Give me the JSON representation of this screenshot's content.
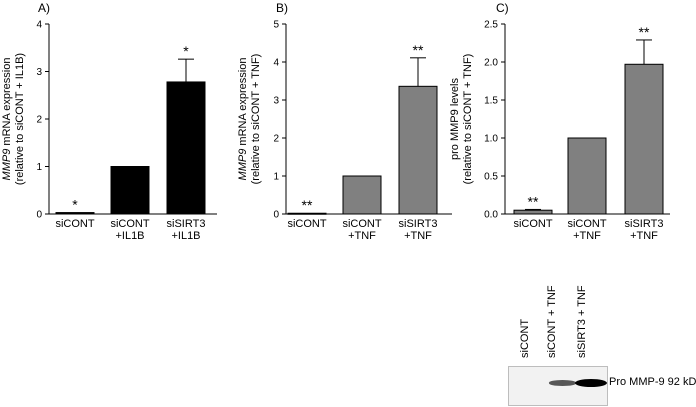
{
  "chart_data": [
    {
      "panel_label": "A)",
      "type": "bar",
      "categories": [
        "siCONT",
        "siCONT +IL1B",
        "siSIRT3 +IL1B"
      ],
      "category_lines": [
        [
          "siCONT"
        ],
        [
          "siCONT",
          "+IL1B"
        ],
        [
          "siSIRT3",
          "+IL1B"
        ]
      ],
      "values": [
        0.03,
        1.0,
        2.78
      ],
      "errors": [
        0.0,
        0.0,
        0.48
      ],
      "significance": [
        "*",
        "",
        "*"
      ],
      "ylabel_lines": [
        "MMP9 mRNA expression",
        "(relative to siCONT + IL1B)"
      ],
      "ylabel_italic_prefix": "MMP9",
      "ylim": [
        0,
        4
      ],
      "yticks": [
        0,
        1,
        2,
        3,
        4
      ],
      "ytick_labels": [
        "0",
        "1",
        "2",
        "3",
        "4"
      ],
      "bar_color": "#000000"
    },
    {
      "panel_label": "B)",
      "type": "bar",
      "categories": [
        "siCONT",
        "siCONT +TNF",
        "siSIRT3 +TNF"
      ],
      "category_lines": [
        [
          "siCONT"
        ],
        [
          "siCONT",
          "+TNF"
        ],
        [
          "siSIRT3",
          "+TNF"
        ]
      ],
      "values": [
        0.02,
        1.0,
        3.36
      ],
      "errors": [
        0.0,
        0.0,
        0.75
      ],
      "significance": [
        "**",
        "",
        "**"
      ],
      "ylabel_lines": [
        "MMP9 mRNA expression",
        "(relative to siCONT + TNF)"
      ],
      "ylabel_italic_prefix": "MMP9",
      "ylim": [
        0,
        5
      ],
      "yticks": [
        0,
        1,
        2,
        3,
        4,
        5
      ],
      "ytick_labels": [
        "0",
        "1",
        "2",
        "3",
        "4",
        "5"
      ],
      "bar_color": "#808080"
    },
    {
      "panel_label": "C)",
      "type": "bar",
      "categories": [
        "siCONT",
        "siCONT +TNF",
        "siSIRT3 +TNF"
      ],
      "category_lines": [
        [
          "siCONT"
        ],
        [
          "siCONT",
          "+TNF"
        ],
        [
          "siSIRT3",
          "+TNF"
        ]
      ],
      "values": [
        0.05,
        1.0,
        1.97
      ],
      "errors": [
        0.01,
        0.0,
        0.32
      ],
      "significance": [
        "**",
        "",
        "**"
      ],
      "ylabel_lines": [
        "pro MMP9 levels",
        "(relative to siCONT + TNF)"
      ],
      "ylabel_italic_prefix": "",
      "ylim": [
        0,
        2.5
      ],
      "yticks": [
        0,
        0.5,
        1.0,
        1.5,
        2.0,
        2.5
      ],
      "ytick_labels": [
        "0.0",
        "0.5",
        "1.0",
        "1.5",
        "2.0",
        "2.5"
      ],
      "bar_color": "#808080"
    }
  ],
  "western_blot": {
    "lane_labels": [
      "siCONT",
      "siCONT + TNF",
      "siSIRT3 + TNF"
    ],
    "band_intensities": [
      0.0,
      0.45,
      1.0
    ],
    "caption": "Pro MMP-9 92 kD"
  }
}
